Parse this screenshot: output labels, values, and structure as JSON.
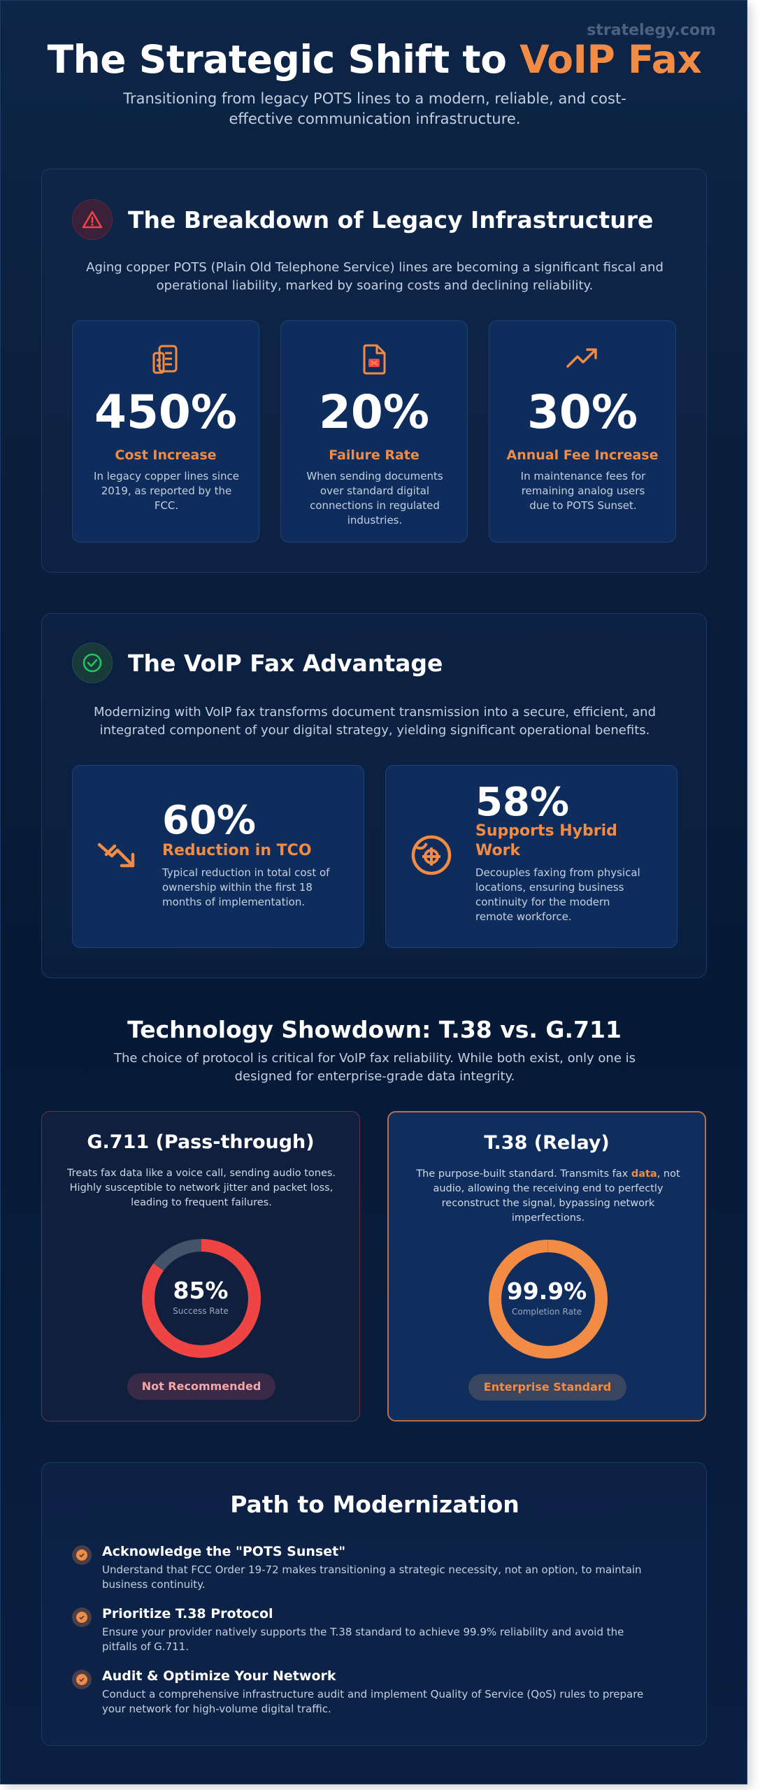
{
  "brand": "stratelegy.com",
  "header": {
    "title_main": "The Strategic Shift to ",
    "title_accent": "VoIP Fax",
    "subtitle": "Transitioning from legacy POTS lines to a modern, reliable, and cost-effective communication infrastructure."
  },
  "legacy": {
    "title": "The Breakdown of Legacy Infrastructure",
    "description": "Aging copper POTS (Plain Old Telephone Service) lines are becoming a significant fiscal and operational liability, marked by soaring costs and declining reliability.",
    "stats": [
      {
        "icon": "building-icon",
        "value": "450%",
        "label": "Cost Increase",
        "text": "In legacy copper lines since 2019, as reported by the FCC."
      },
      {
        "icon": "file-error-icon",
        "value": "20%",
        "label": "Failure Rate",
        "text": "When sending documents over standard digital connections in regulated industries."
      },
      {
        "icon": "trending-up-icon",
        "value": "30%",
        "label": "Annual Fee Increase",
        "text": "In maintenance fees for remaining analog users due to POTS Sunset."
      }
    ]
  },
  "advantage": {
    "title": "The VoIP Fax Advantage",
    "description": "Modernizing with VoIP fax transforms document transmission into a secure, efficient, and integrated component of your digital strategy, yielding significant operational benefits.",
    "cards": [
      {
        "icon": "trending-down-icon",
        "value": "60%",
        "label": "Reduction in TCO",
        "text": "Typical reduction in total cost of ownership within the first 18 months of implementation."
      },
      {
        "icon": "globe-icon",
        "value": "58%",
        "label": "Supports Hybrid Work",
        "text": "Decouples faxing from physical locations, ensuring business continuity for the modern remote workforce."
      }
    ]
  },
  "showdown": {
    "title": "Technology Showdown: T.38 vs. G.711",
    "description": "The choice of protocol is critical for VoIP fax reliability. While both exist, only one is designed for enterprise-grade data integrity.",
    "g711": {
      "title": "G.711 (Pass-through)",
      "text": "Treats fax data like a voice call, sending audio tones. Highly susceptible to network jitter and packet loss, leading to frequent failures.",
      "value": "85%",
      "value_label": "Success Rate",
      "percent": 85,
      "color": "#ef4444",
      "badge": "Not Recommended"
    },
    "t38": {
      "title": "T.38 (Relay)",
      "text_before": "The purpose-built standard. Transmits fax ",
      "text_highlight": "data",
      "text_after": ", not audio, allowing the receiving end to perfectly reconstruct the signal, bypassing network imperfections.",
      "value": "99.9%",
      "value_label": "Completion Rate",
      "percent": 99.9,
      "color": "#f28c45",
      "badge": "Enterprise Standard"
    }
  },
  "path": {
    "title": "Path to Modernization",
    "steps": [
      {
        "title": "Acknowledge the \"POTS Sunset\"",
        "text": "Understand that FCC Order 19-72 makes transitioning a strategic necessity, not an option, to maintain business continuity."
      },
      {
        "title": "Prioritize T.38 Protocol",
        "text": "Ensure your provider natively supports the T.38 standard to achieve 99.9% reliability and avoid the pitfalls of G.711."
      },
      {
        "title": "Audit & Optimize Your Network",
        "text": "Conduct a comprehensive infrastructure audit and implement Quality of Service (QoS) rules to prepare your network for high-volume digital traffic."
      }
    ]
  },
  "colors": {
    "accent": "#f28c45",
    "danger": "#ef4444",
    "success": "#22c55e",
    "background": "#0b1f3d"
  }
}
